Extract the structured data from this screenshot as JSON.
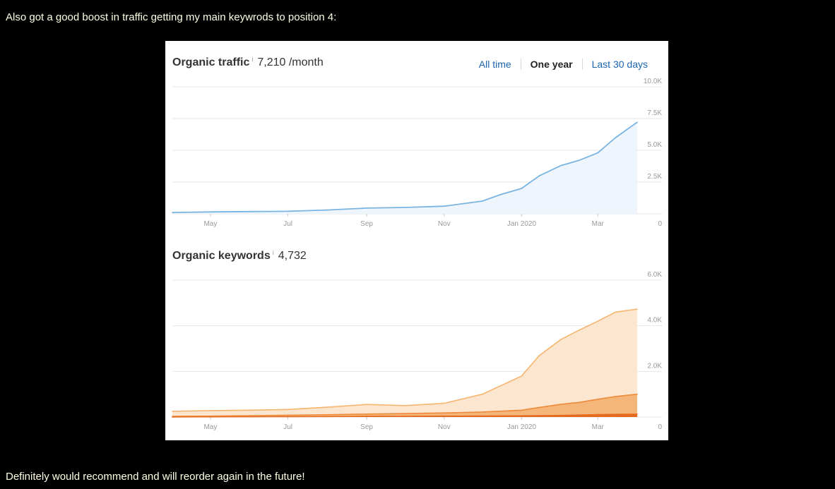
{
  "post": {
    "intro": "Also got a good boost in traffic getting my main keywrods to position 4:",
    "outro": "Definitely would recommend and will reorder again in the future!"
  },
  "traffic": {
    "title": "Organic traffic",
    "info": "i",
    "value": "7,210 /month",
    "tabs": [
      "All time",
      "One year",
      "Last 30 days"
    ],
    "active_tab": "One year"
  },
  "keywords": {
    "title": "Organic keywords",
    "info": "i",
    "value": "4,732"
  },
  "colors": {
    "traffic_line": "#7ab4e0",
    "traffic_fill": "#eef5fd",
    "kw_light": "#fde6cf",
    "kw_light_line": "#f6b56e",
    "kw_mid": "#f5b679",
    "kw_mid_line": "#ee8a3c",
    "kw_dark": "#e46a1f"
  },
  "chart_data": [
    {
      "type": "area",
      "title": "Organic traffic",
      "x_ticks": [
        "May",
        "Jul",
        "Sep",
        "Nov",
        "Jan 2020",
        "Mar"
      ],
      "y_ticks": [
        "0",
        "2.5K",
        "5.0K",
        "7.5K",
        "10.0K"
      ],
      "ylim": [
        0,
        10000
      ],
      "grid": true,
      "x": [
        "2019-04-01",
        "2019-05-01",
        "2019-06-01",
        "2019-07-01",
        "2019-08-01",
        "2019-09-01",
        "2019-10-01",
        "2019-11-01",
        "2019-12-01",
        "2019-12-15",
        "2020-01-01",
        "2020-01-15",
        "2020-02-01",
        "2020-02-15",
        "2020-03-01",
        "2020-03-15",
        "2020-04-01"
      ],
      "series": [
        {
          "values": [
            100,
            150,
            180,
            200,
            300,
            450,
            500,
            600,
            1000,
            1500,
            2000,
            3000,
            3800,
            4200,
            4800,
            6000,
            7210
          ]
        }
      ]
    },
    {
      "type": "area",
      "title": "Organic keywords",
      "x_ticks": [
        "May",
        "Jul",
        "Sep",
        "Nov",
        "Jan 2020",
        "Mar"
      ],
      "y_ticks": [
        "0",
        "2.0K",
        "4.0K",
        "6.0K"
      ],
      "ylim": [
        0,
        6000
      ],
      "grid": true,
      "x": [
        "2019-04-01",
        "2019-05-01",
        "2019-06-01",
        "2019-07-01",
        "2019-08-01",
        "2019-09-01",
        "2019-10-01",
        "2019-11-01",
        "2019-12-01",
        "2020-01-01",
        "2020-01-15",
        "2020-02-01",
        "2020-02-15",
        "2020-03-01",
        "2020-03-15",
        "2020-04-01"
      ],
      "series": [
        {
          "values": [
            250,
            280,
            300,
            330,
            430,
            550,
            500,
            600,
            1000,
            1800,
            2700,
            3400,
            3800,
            4200,
            4600,
            4732
          ]
        },
        {
          "values": [
            30,
            40,
            60,
            80,
            100,
            130,
            150,
            180,
            220,
            300,
            420,
            560,
            640,
            780,
            900,
            1000
          ]
        },
        {
          "values": [
            0,
            5,
            10,
            15,
            20,
            30,
            35,
            40,
            45,
            55,
            65,
            75,
            90,
            110,
            120,
            130
          ]
        }
      ]
    }
  ]
}
